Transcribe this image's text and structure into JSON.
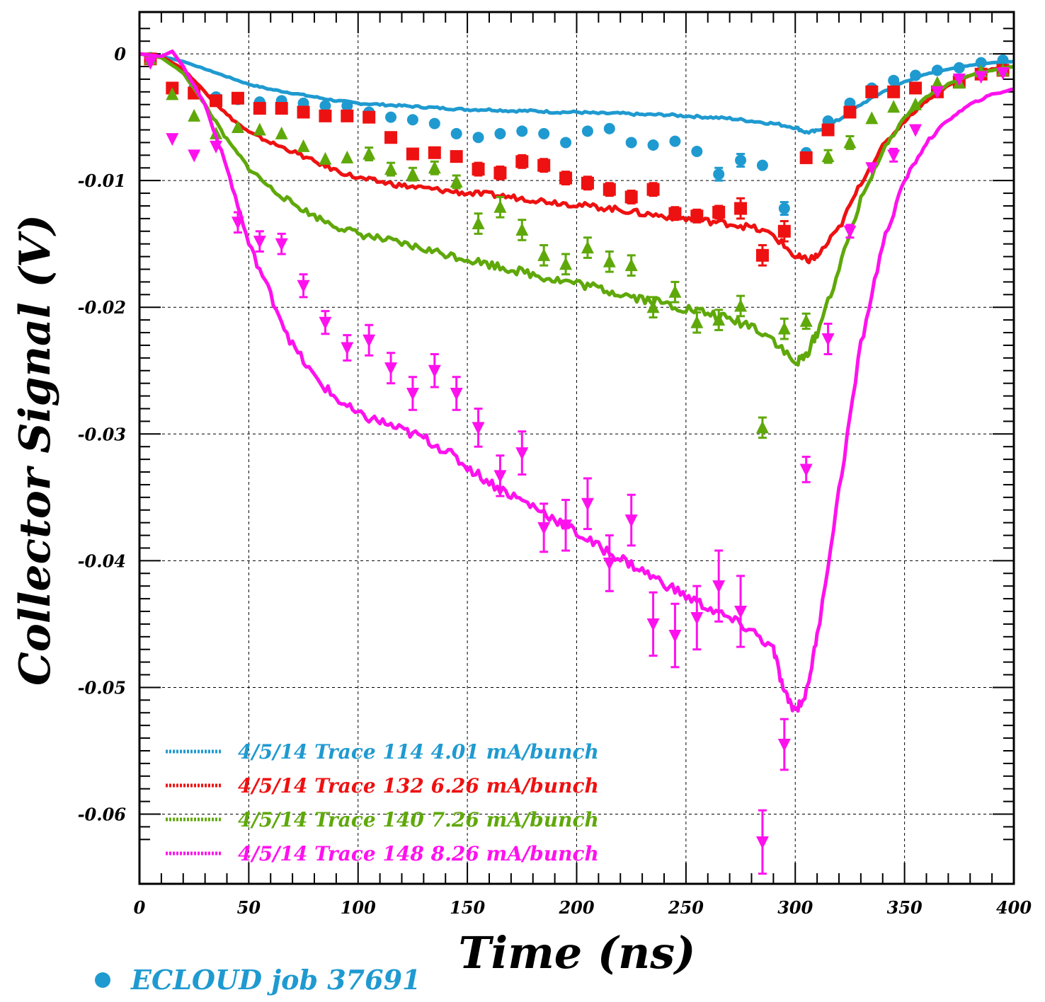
{
  "chart_data": {
    "type": "line",
    "xlabel": "Time (ns)",
    "ylabel": "Collector Signal (V)",
    "xlim": [
      0,
      400
    ],
    "ylim": [
      -0.0655,
      0.0033
    ],
    "xticks": [
      0,
      50,
      100,
      150,
      200,
      250,
      300,
      350,
      400
    ],
    "xtick_labels": [
      "0",
      "50",
      "100",
      "150",
      "200",
      "250",
      "300",
      "350",
      "400"
    ],
    "yticks": [
      0,
      -0.01,
      -0.02,
      -0.03,
      -0.04,
      -0.05,
      -0.06
    ],
    "ytick_labels": [
      "0",
      "-0.01",
      "-0.02",
      "-0.03",
      "-0.04",
      "-0.05",
      "-0.06"
    ],
    "grid": true,
    "legend_position": "bottom-left",
    "simulation_label": "ECLOUD job 37691",
    "series": [
      {
        "name": "4/5/14 Trace 114  4.01 mA/bunch",
        "color": "#1f9ad0",
        "marker": "circle",
        "line_x": [
          0,
          10,
          20,
          30,
          40,
          50,
          60,
          70,
          80,
          90,
          100,
          110,
          120,
          130,
          140,
          150,
          160,
          170,
          180,
          190,
          200,
          210,
          220,
          230,
          240,
          250,
          260,
          270,
          280,
          290,
          300,
          305,
          310,
          320,
          330,
          340,
          350,
          360,
          370,
          380,
          390,
          400
        ],
        "line_y": [
          0,
          -0.0002,
          -0.0006,
          -0.0012,
          -0.0018,
          -0.0024,
          -0.0028,
          -0.0031,
          -0.0034,
          -0.0037,
          -0.0039,
          -0.004,
          -0.0041,
          -0.0042,
          -0.0043,
          -0.0044,
          -0.0044,
          -0.0045,
          -0.0045,
          -0.0046,
          -0.0046,
          -0.0047,
          -0.0047,
          -0.0048,
          -0.0048,
          -0.0049,
          -0.005,
          -0.0051,
          -0.0053,
          -0.0055,
          -0.0058,
          -0.0062,
          -0.0061,
          -0.0052,
          -0.004,
          -0.003,
          -0.0022,
          -0.0016,
          -0.0012,
          -0.0009,
          -0.0007,
          -0.0006
        ],
        "points_x": [
          5,
          15,
          25,
          35,
          45,
          55,
          65,
          75,
          85,
          95,
          105,
          115,
          125,
          135,
          145,
          155,
          165,
          175,
          185,
          195,
          205,
          215,
          225,
          235,
          245,
          255,
          265,
          275,
          285,
          295,
          305,
          315,
          325,
          335,
          345,
          355,
          365,
          375,
          385,
          395
        ],
        "points_y": [
          -0.0003,
          -0.0027,
          -0.0027,
          -0.0034,
          -0.0036,
          -0.0038,
          -0.0037,
          -0.0039,
          -0.0041,
          -0.0041,
          -0.0046,
          -0.005,
          -0.0052,
          -0.0055,
          -0.0063,
          -0.0066,
          -0.0063,
          -0.0061,
          -0.0063,
          -0.007,
          -0.0061,
          -0.0059,
          -0.007,
          -0.0072,
          -0.0069,
          -0.0077,
          -0.0095,
          -0.0084,
          -0.0088,
          -0.0122,
          -0.0078,
          -0.0053,
          -0.0039,
          -0.0027,
          -0.0021,
          -0.0017,
          -0.0013,
          -0.0011,
          -0.0007,
          -0.0005
        ],
        "points_err": [
          0,
          0,
          0,
          0,
          0,
          0,
          0,
          0,
          0,
          0,
          0,
          0,
          0,
          0,
          0,
          0,
          0,
          0,
          0,
          0,
          0,
          0,
          0,
          0,
          0,
          0,
          0.0005,
          0.0005,
          0,
          0.0005,
          0,
          0,
          0,
          0,
          0,
          0,
          0,
          0,
          0,
          0
        ]
      },
      {
        "name": "4/5/14 Trace 132  6.26 mA/bunch",
        "color": "#ee1111",
        "marker": "square",
        "line_x": [
          0,
          10,
          20,
          30,
          40,
          50,
          60,
          70,
          80,
          90,
          100,
          110,
          120,
          130,
          140,
          150,
          160,
          170,
          180,
          190,
          200,
          210,
          220,
          230,
          240,
          250,
          260,
          270,
          280,
          290,
          300,
          305,
          310,
          320,
          330,
          340,
          350,
          360,
          370,
          380,
          390,
          400
        ],
        "line_y": [
          0,
          -0.0002,
          -0.0012,
          -0.003,
          -0.0048,
          -0.0062,
          -0.007,
          -0.0077,
          -0.0085,
          -0.0092,
          -0.0098,
          -0.0101,
          -0.0104,
          -0.0106,
          -0.0108,
          -0.011,
          -0.0111,
          -0.0113,
          -0.0115,
          -0.0117,
          -0.0119,
          -0.0121,
          -0.0123,
          -0.0126,
          -0.0128,
          -0.013,
          -0.0132,
          -0.0134,
          -0.0137,
          -0.0143,
          -0.016,
          -0.0163,
          -0.016,
          -0.0138,
          -0.0102,
          -0.0073,
          -0.0053,
          -0.0037,
          -0.0025,
          -0.0017,
          -0.0012,
          -0.001
        ],
        "points_x": [
          5,
          15,
          25,
          35,
          45,
          55,
          65,
          75,
          85,
          95,
          105,
          115,
          125,
          135,
          145,
          155,
          165,
          175,
          185,
          195,
          205,
          215,
          225,
          235,
          245,
          255,
          265,
          275,
          285,
          295,
          305,
          315,
          325,
          335,
          345,
          355,
          365,
          375,
          385,
          395
        ],
        "points_y": [
          -0.0004,
          -0.0027,
          -0.0031,
          -0.0037,
          -0.0035,
          -0.0043,
          -0.0043,
          -0.0046,
          -0.0049,
          -0.0049,
          -0.005,
          -0.0066,
          -0.0079,
          -0.0078,
          -0.0081,
          -0.0091,
          -0.0094,
          -0.0085,
          -0.0088,
          -0.0098,
          -0.0102,
          -0.0107,
          -0.0113,
          -0.0107,
          -0.0126,
          -0.0128,
          -0.0125,
          -0.0122,
          -0.0159,
          -0.014,
          -0.0082,
          -0.006,
          -0.0046,
          -0.003,
          -0.003,
          -0.0027,
          -0.003,
          -0.0022,
          -0.0016,
          -0.0013
        ],
        "points_err": [
          0,
          0,
          0,
          0,
          0,
          0,
          0,
          0,
          0,
          0,
          0,
          0,
          0,
          0,
          0,
          0.0005,
          0.0005,
          0.0005,
          0.0005,
          0.0005,
          0.0005,
          0.0005,
          0.0005,
          0.0005,
          0.0005,
          0.0005,
          0.0005,
          0.0008,
          0.0008,
          0.0008,
          0,
          0,
          0,
          0,
          0,
          0,
          0,
          0,
          0,
          0
        ]
      },
      {
        "name": "4/5/14 Trace 140  7.26 mA/bunch",
        "color": "#5fa80a",
        "marker": "triangle-up",
        "line_x": [
          0,
          10,
          20,
          30,
          40,
          50,
          60,
          70,
          80,
          90,
          100,
          110,
          120,
          130,
          140,
          150,
          160,
          170,
          180,
          190,
          200,
          210,
          220,
          230,
          240,
          250,
          260,
          270,
          280,
          290,
          300,
          305,
          310,
          320,
          330,
          340,
          350,
          360,
          370,
          380,
          390,
          400
        ],
        "line_y": [
          0,
          -0.0003,
          -0.0015,
          -0.004,
          -0.0068,
          -0.009,
          -0.0106,
          -0.0118,
          -0.0128,
          -0.0136,
          -0.0142,
          -0.0146,
          -0.015,
          -0.0154,
          -0.0158,
          -0.0162,
          -0.0166,
          -0.017,
          -0.0174,
          -0.0178,
          -0.0181,
          -0.0185,
          -0.0189,
          -0.0193,
          -0.0197,
          -0.0201,
          -0.0205,
          -0.021,
          -0.0214,
          -0.0225,
          -0.0245,
          -0.0238,
          -0.022,
          -0.017,
          -0.0115,
          -0.0077,
          -0.005,
          -0.0034,
          -0.0024,
          -0.0017,
          -0.0013,
          -0.001
        ],
        "points_x": [
          5,
          15,
          25,
          35,
          45,
          55,
          65,
          75,
          85,
          95,
          105,
          115,
          125,
          135,
          145,
          155,
          165,
          175,
          185,
          195,
          205,
          215,
          225,
          235,
          245,
          255,
          265,
          275,
          285,
          295,
          305,
          315,
          325,
          335,
          345,
          355,
          365,
          375,
          385,
          395
        ],
        "points_y": [
          -0.0004,
          -0.0032,
          -0.0049,
          -0.0063,
          -0.0058,
          -0.006,
          -0.0063,
          -0.0073,
          -0.0083,
          -0.0082,
          -0.0079,
          -0.0091,
          -0.0095,
          -0.009,
          -0.0101,
          -0.0134,
          -0.0121,
          -0.0139,
          -0.0159,
          -0.0166,
          -0.0153,
          -0.0164,
          -0.0167,
          -0.02,
          -0.0188,
          -0.0212,
          -0.021,
          -0.0199,
          -0.0295,
          -0.0217,
          -0.0211,
          -0.0081,
          -0.007,
          -0.0051,
          -0.0042,
          -0.004,
          -0.0023,
          -0.0023,
          -0.0014,
          -0.0013
        ],
        "points_err": [
          0,
          0,
          0,
          0,
          0,
          0,
          0,
          0,
          0,
          0,
          0.0005,
          0.0005,
          0.0005,
          0.0005,
          0.0005,
          0.0008,
          0.0008,
          0.0008,
          0.0008,
          0.0008,
          0.0008,
          0.0008,
          0.0008,
          0.0008,
          0.0008,
          0.0008,
          0.0008,
          0.0008,
          0.0008,
          0.0008,
          0.0006,
          0.0005,
          0.0005,
          0,
          0,
          0,
          0,
          0,
          0,
          0
        ]
      },
      {
        "name": "4/5/14 Trace 148  8.26 mA/bunch",
        "color": "#ff11ee",
        "marker": "triangle-down",
        "line_x": [
          0,
          10,
          15,
          20,
          30,
          40,
          50,
          60,
          70,
          80,
          90,
          100,
          110,
          120,
          130,
          140,
          150,
          160,
          170,
          180,
          190,
          200,
          210,
          220,
          230,
          240,
          250,
          260,
          270,
          280,
          290,
          295,
          300,
          305,
          310,
          320,
          330,
          340,
          350,
          360,
          370,
          380,
          390,
          400
        ],
        "line_y": [
          0,
          -0.0002,
          0.0002,
          -0.001,
          -0.004,
          -0.009,
          -0.015,
          -0.019,
          -0.023,
          -0.0255,
          -0.0272,
          -0.0285,
          -0.029,
          -0.0297,
          -0.0303,
          -0.0313,
          -0.0326,
          -0.0338,
          -0.0348,
          -0.0357,
          -0.0367,
          -0.0378,
          -0.0389,
          -0.0398,
          -0.0408,
          -0.0418,
          -0.0428,
          -0.0437,
          -0.0446,
          -0.0455,
          -0.047,
          -0.0505,
          -0.0518,
          -0.0505,
          -0.046,
          -0.0345,
          -0.023,
          -0.015,
          -0.01,
          -0.007,
          -0.0052,
          -0.004,
          -0.0032,
          -0.0028
        ],
        "points_x": [
          5,
          15,
          25,
          35,
          45,
          55,
          65,
          75,
          85,
          95,
          105,
          115,
          125,
          135,
          145,
          155,
          165,
          175,
          185,
          195,
          205,
          215,
          225,
          235,
          245,
          255,
          265,
          275,
          285,
          295,
          305,
          315,
          325,
          335,
          345,
          355,
          365,
          375,
          385,
          395
        ],
        "points_y": [
          -0.0007,
          -0.0067,
          -0.008,
          -0.0073,
          -0.0133,
          -0.0148,
          -0.015,
          -0.0183,
          -0.0212,
          -0.0232,
          -0.0226,
          -0.0248,
          -0.0268,
          -0.025,
          -0.0268,
          -0.0295,
          -0.0333,
          -0.0315,
          -0.0374,
          -0.0372,
          -0.0355,
          -0.0402,
          -0.0368,
          -0.045,
          -0.0459,
          -0.0445,
          -0.042,
          -0.044,
          -0.0622,
          -0.0545,
          -0.0328,
          -0.0225,
          -0.014,
          -0.009,
          -0.008,
          -0.006,
          -0.003,
          -0.002,
          -0.0018,
          -0.0015
        ],
        "points_err": [
          0,
          0,
          0,
          0,
          0.0008,
          0.0008,
          0.0008,
          0.0009,
          0.0009,
          0.001,
          0.0012,
          0.0012,
          0.0013,
          0.0013,
          0.0013,
          0.0015,
          0.0016,
          0.0017,
          0.0019,
          0.002,
          0.002,
          0.0022,
          0.002,
          0.0025,
          0.0025,
          0.0025,
          0.0028,
          0.0028,
          0.0025,
          0.002,
          0.001,
          0.0012,
          0.0005,
          0,
          0.0005,
          0,
          0,
          0,
          0,
          0
        ]
      }
    ]
  }
}
